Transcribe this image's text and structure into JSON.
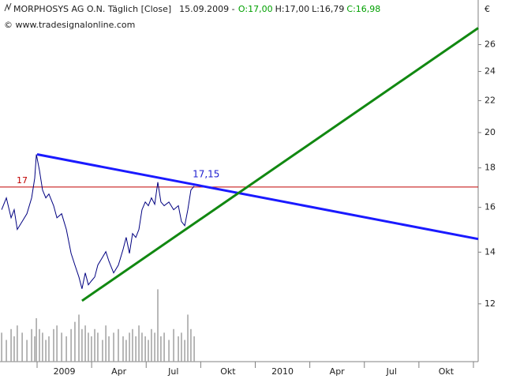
{
  "chart_data": {
    "type": "line",
    "title": "MORPHOSYS AG O.N. Täglich [Close]",
    "date": "15.09.2009 -",
    "ohlc": [
      {
        "text": "O:17,00",
        "color": "#00a000"
      },
      {
        "text": "H:17,00",
        "color": "#202020"
      },
      {
        "text": "L:16,79",
        "color": "#202020"
      },
      {
        "text": "C:16,98",
        "color": "#00a000"
      }
    ],
    "subtitle": "© www.tradesignalonline.com",
    "y_unit": "€",
    "log_scale": true,
    "xlim": [
      -2.04,
      24.26
    ],
    "ylim": [
      10.1,
      29.7
    ],
    "y2lim": [
      0,
      100
    ],
    "yticks": [
      12,
      14,
      16,
      18,
      20,
      22,
      24,
      26
    ],
    "xticks": [
      {
        "value": 1.5,
        "label": "2009"
      },
      {
        "value": 4.5,
        "label": "Apr"
      },
      {
        "value": 7.5,
        "label": "Jul"
      },
      {
        "value": 10.5,
        "label": "Okt"
      },
      {
        "value": 13.5,
        "label": "2010"
      },
      {
        "value": 16.5,
        "label": "Apr"
      },
      {
        "value": 19.5,
        "label": "Jul"
      },
      {
        "value": 22.5,
        "label": "Okt"
      }
    ],
    "x": [
      -1.95,
      -1.69,
      -1.43,
      -1.26,
      -1.09,
      -0.82,
      -0.56,
      -0.3,
      -0.13,
      -0.04,
      0.13,
      0.3,
      0.48,
      0.65,
      0.91,
      1.09,
      1.35,
      1.61,
      1.87,
      2.08,
      2.3,
      2.47,
      2.65,
      2.82,
      2.99,
      3.17,
      3.34,
      3.6,
      3.78,
      3.95,
      4.21,
      4.47,
      4.73,
      4.9,
      5.08,
      5.25,
      5.43,
      5.6,
      5.77,
      5.95,
      6.12,
      6.29,
      6.47,
      6.64,
      6.81,
      6.99,
      7.25,
      7.51,
      7.77,
      7.94,
      8.12,
      8.29,
      8.46,
      8.64
    ],
    "series": [
      {
        "color": "#000080",
        "values": [
          15.89,
          16.46,
          15.51,
          15.89,
          14.98,
          15.34,
          15.7,
          16.46,
          17.46,
          18.74,
          17.87,
          16.85,
          16.46,
          16.65,
          16.08,
          15.51,
          15.7,
          14.98,
          13.95,
          13.47,
          13.0,
          12.55,
          13.16,
          12.7,
          12.85,
          13.0,
          13.47,
          13.79,
          14.02,
          13.63,
          13.16,
          13.47,
          14.12,
          14.63,
          13.95,
          14.8,
          14.63,
          14.98,
          15.89,
          16.26,
          16.08,
          16.46,
          16.15,
          17.25,
          16.26,
          16.08,
          16.26,
          15.89,
          16.08,
          15.34,
          15.15,
          15.89,
          16.85,
          17.05
        ]
      },
      {
        "color": "#a0a0a0",
        "axis": "y2",
        "values": [
          8,
          6,
          9,
          7,
          10,
          8,
          6,
          9,
          7,
          12,
          9,
          8,
          6,
          7,
          9,
          10,
          8,
          7,
          9,
          11,
          13,
          9,
          10,
          8,
          7,
          9,
          8,
          6,
          10,
          7,
          8,
          9,
          7,
          6,
          8,
          9,
          7,
          10,
          8,
          7,
          6,
          9,
          8,
          20,
          7,
          8,
          6,
          9,
          7,
          8,
          6,
          13,
          9,
          7
        ]
      }
    ],
    "hline": {
      "value": 17,
      "label": "17",
      "color": "#c00000"
    },
    "annotation": {
      "value": 17.15,
      "label": "17,15",
      "color": "#2020d0"
    },
    "trendlines": [
      {
        "color": "#1a1aff",
        "x": [
          0,
          24.26
        ],
        "values": [
          18.74,
          14.56
        ]
      },
      {
        "color": "#118811",
        "x": [
          2.47,
          24.26
        ],
        "values": [
          12.11,
          27.32
        ]
      }
    ]
  }
}
